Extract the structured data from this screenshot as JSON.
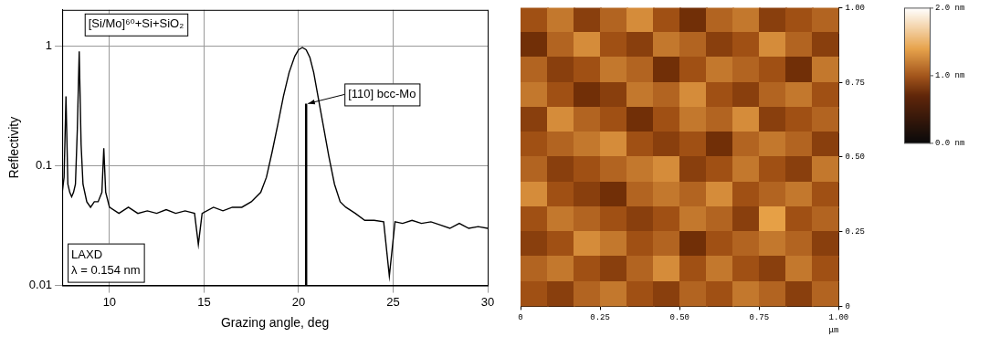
{
  "chart_data": [
    {
      "type": "line",
      "x_label": "Grazing angle, deg",
      "y_label": "Reflectivity",
      "x": [
        7.5,
        7.6,
        7.7,
        7.8,
        7.9,
        8.0,
        8.1,
        8.2,
        8.3,
        8.4,
        8.5,
        8.6,
        8.8,
        9.0,
        9.2,
        9.4,
        9.6,
        9.7,
        9.8,
        10.0,
        10.5,
        11,
        11.5,
        12,
        12.5,
        13,
        13.5,
        14,
        14.5,
        14.7,
        14.9,
        15.5,
        16,
        16.5,
        17,
        17.5,
        18,
        18.3,
        18.6,
        18.9,
        19.2,
        19.5,
        19.8,
        20.0,
        20.2,
        20.4,
        20.6,
        20.8,
        21.0,
        21.3,
        21.6,
        21.9,
        22.2,
        22.5,
        23,
        23.5,
        24,
        24.5,
        24.8,
        25.1,
        25.5,
        26,
        26.5,
        27,
        27.5,
        28,
        28.5,
        29,
        29.5,
        30
      ],
      "values": [
        0.06,
        0.08,
        0.38,
        0.07,
        0.06,
        0.055,
        0.06,
        0.07,
        0.2,
        0.9,
        0.15,
        0.07,
        0.05,
        0.045,
        0.05,
        0.05,
        0.06,
        0.14,
        0.06,
        0.045,
        0.04,
        0.045,
        0.04,
        0.042,
        0.04,
        0.043,
        0.04,
        0.042,
        0.04,
        0.022,
        0.04,
        0.045,
        0.042,
        0.045,
        0.045,
        0.05,
        0.06,
        0.08,
        0.13,
        0.22,
        0.38,
        0.6,
        0.82,
        0.93,
        0.97,
        0.93,
        0.8,
        0.6,
        0.4,
        0.22,
        0.12,
        0.07,
        0.05,
        0.045,
        0.04,
        0.035,
        0.035,
        0.034,
        0.012,
        0.034,
        0.033,
        0.035,
        0.033,
        0.034,
        0.032,
        0.03,
        0.033,
        0.03,
        0.031,
        0.03
      ],
      "color": "#000000",
      "reference": {
        "x": 20.4,
        "value": 0.33
      },
      "annotations": {
        "peak": "[Si/Mo]⁶⁰+Si+SiO₂",
        "reference": "[110] bcc-Mo",
        "method": [
          "LAXD",
          "λ = 0.154 nm"
        ]
      },
      "xlim": [
        7.5,
        30
      ],
      "xticks": [
        10,
        15,
        20,
        25,
        30
      ],
      "ylim": [
        0.01,
        2
      ],
      "yticks": [
        0.01,
        0.1,
        1
      ],
      "log": "y",
      "grid": true
    },
    {
      "type": "heatmap",
      "x_label": "μm",
      "xlim": [
        0,
        1
      ],
      "ylim": [
        0,
        1
      ],
      "xticks": [
        0,
        0.25,
        {
          "value": 0.5,
          "label": "0.50"
        },
        0.75,
        {
          "value": 1,
          "label": "1.00"
        }
      ],
      "yticks": [
        0,
        0.25,
        {
          "value": 0.5,
          "label": "0.50"
        },
        0.75,
        {
          "value": 1,
          "label": "1.00"
        }
      ],
      "cells": [
        [
          1.0,
          1.2,
          0.9,
          1.1,
          1.3,
          1.0,
          0.8,
          1.1,
          1.2,
          0.9,
          1.0,
          1.1
        ],
        [
          0.8,
          1.1,
          1.3,
          1.0,
          0.9,
          1.2,
          1.1,
          0.9,
          1.0,
          1.3,
          1.1,
          0.9
        ],
        [
          1.1,
          0.9,
          1.0,
          1.2,
          1.1,
          0.8,
          1.0,
          1.2,
          1.1,
          1.0,
          0.8,
          1.2
        ],
        [
          1.2,
          1.0,
          0.8,
          0.9,
          1.2,
          1.1,
          1.3,
          1.0,
          0.9,
          1.1,
          1.2,
          1.0
        ],
        [
          0.9,
          1.3,
          1.1,
          1.0,
          0.8,
          1.0,
          1.2,
          1.1,
          1.3,
          0.9,
          1.0,
          1.1
        ],
        [
          1.0,
          1.1,
          1.2,
          1.3,
          1.0,
          0.9,
          1.0,
          0.8,
          1.1,
          1.2,
          1.1,
          0.9
        ],
        [
          1.1,
          0.9,
          1.0,
          1.1,
          1.2,
          1.3,
          0.9,
          1.0,
          1.2,
          1.0,
          0.9,
          1.2
        ],
        [
          1.3,
          1.0,
          0.9,
          0.8,
          1.1,
          1.2,
          1.1,
          1.3,
          1.0,
          1.1,
          1.2,
          1.0
        ],
        [
          1.0,
          1.2,
          1.1,
          1.0,
          0.9,
          1.0,
          1.2,
          1.1,
          0.9,
          1.4,
          1.0,
          1.1
        ],
        [
          0.9,
          1.0,
          1.3,
          1.2,
          1.0,
          1.1,
          0.8,
          1.0,
          1.1,
          1.2,
          1.1,
          0.9
        ],
        [
          1.1,
          1.2,
          1.0,
          0.9,
          1.1,
          1.3,
          1.0,
          1.2,
          1.0,
          0.9,
          1.2,
          1.0
        ],
        [
          1.0,
          0.9,
          1.1,
          1.2,
          1.0,
          0.9,
          1.1,
          1.0,
          1.2,
          1.1,
          0.9,
          1.1
        ]
      ],
      "colorbar": {
        "range": [
          0,
          2
        ],
        "ticks": [
          {
            "value": 0,
            "label": "0.0 nm"
          },
          {
            "value": 1,
            "label": "1.0 nm"
          },
          {
            "value": 2,
            "label": "2.0 nm"
          }
        ]
      }
    }
  ]
}
